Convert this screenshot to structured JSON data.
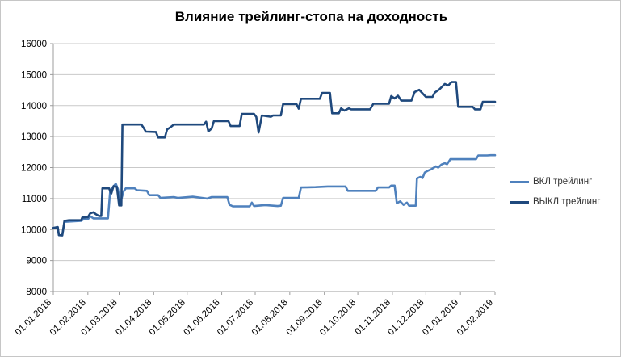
{
  "chart_data": {
    "type": "line",
    "title": "Влияние трейлинг-стопа на доходность",
    "xlabel": "",
    "ylabel": "",
    "ylim": [
      8000,
      16000
    ],
    "y_ticks": [
      8000,
      9000,
      10000,
      11000,
      12000,
      13000,
      14000,
      15000,
      16000
    ],
    "x_tick_labels": [
      "01.01.2018",
      "01.02.2018",
      "01.03.2018",
      "01.04.2018",
      "01.05.2018",
      "01.06.2018",
      "01.07.2018",
      "01.08.2018",
      "01.09.2018",
      "01.10.2018",
      "01.11.2018",
      "01.12.2018",
      "01.01.2019",
      "01.02.2019"
    ],
    "x_tick_days": [
      0,
      31,
      59,
      90,
      120,
      151,
      181,
      212,
      243,
      273,
      304,
      334,
      365,
      396
    ],
    "xlim_days": [
      0,
      396
    ],
    "grid": true,
    "legend_position": "right",
    "axis_color": "#9c9c9c",
    "grid_color": "#c9c9c9",
    "tick_label_color": "#000000",
    "series": [
      {
        "name": "ВКЛ трейлинг",
        "color": "#4F81BD",
        "points": [
          [
            0,
            10050
          ],
          [
            4,
            10080
          ],
          [
            5,
            9820
          ],
          [
            8,
            9810
          ],
          [
            10,
            10250
          ],
          [
            25,
            10280
          ],
          [
            27,
            10330
          ],
          [
            31,
            10330
          ],
          [
            33,
            10430
          ],
          [
            36,
            10360
          ],
          [
            49,
            10360
          ],
          [
            51,
            11230
          ],
          [
            53,
            11350
          ],
          [
            56,
            11480
          ],
          [
            58,
            11300
          ],
          [
            60,
            10850
          ],
          [
            63,
            11230
          ],
          [
            65,
            11330
          ],
          [
            73,
            11330
          ],
          [
            75,
            11270
          ],
          [
            84,
            11250
          ],
          [
            86,
            11110
          ],
          [
            94,
            11110
          ],
          [
            96,
            11020
          ],
          [
            108,
            11050
          ],
          [
            112,
            11020
          ],
          [
            125,
            11060
          ],
          [
            138,
            11000
          ],
          [
            142,
            11050
          ],
          [
            156,
            11050
          ],
          [
            158,
            10800
          ],
          [
            161,
            10750
          ],
          [
            176,
            10750
          ],
          [
            178,
            10870
          ],
          [
            180,
            10760
          ],
          [
            190,
            10790
          ],
          [
            201,
            10760
          ],
          [
            204,
            10770
          ],
          [
            206,
            11020
          ],
          [
            220,
            11020
          ],
          [
            222,
            11360
          ],
          [
            235,
            11370
          ],
          [
            246,
            11390
          ],
          [
            262,
            11390
          ],
          [
            264,
            11250
          ],
          [
            289,
            11250
          ],
          [
            291,
            11360
          ],
          [
            301,
            11360
          ],
          [
            303,
            11420
          ],
          [
            306,
            11420
          ],
          [
            308,
            10850
          ],
          [
            311,
            10910
          ],
          [
            314,
            10800
          ],
          [
            317,
            10870
          ],
          [
            319,
            10770
          ],
          [
            325,
            10770
          ],
          [
            326,
            11650
          ],
          [
            329,
            11700
          ],
          [
            331,
            11660
          ],
          [
            333,
            11840
          ],
          [
            336,
            11900
          ],
          [
            339,
            11950
          ],
          [
            343,
            12040
          ],
          [
            345,
            12000
          ],
          [
            348,
            12100
          ],
          [
            351,
            12140
          ],
          [
            353,
            12110
          ],
          [
            356,
            12270
          ],
          [
            379,
            12270
          ],
          [
            381,
            12390
          ],
          [
            389,
            12390
          ],
          [
            392,
            12400
          ],
          [
            396,
            12400
          ]
        ]
      },
      {
        "name": "ВЫКЛ трейлинг",
        "color": "#1F497D",
        "points": [
          [
            0,
            10050
          ],
          [
            4,
            10080
          ],
          [
            5,
            9820
          ],
          [
            8,
            9810
          ],
          [
            10,
            10280
          ],
          [
            14,
            10300
          ],
          [
            25,
            10300
          ],
          [
            26,
            10390
          ],
          [
            31,
            10400
          ],
          [
            33,
            10520
          ],
          [
            36,
            10560
          ],
          [
            38,
            10500
          ],
          [
            41,
            10440
          ],
          [
            43,
            10440
          ],
          [
            44,
            11330
          ],
          [
            50,
            11330
          ],
          [
            52,
            11160
          ],
          [
            54,
            11400
          ],
          [
            57,
            11380
          ],
          [
            59,
            10780
          ],
          [
            61,
            10780
          ],
          [
            62,
            13390
          ],
          [
            79,
            13390
          ],
          [
            81,
            13280
          ],
          [
            83,
            13160
          ],
          [
            92,
            13150
          ],
          [
            94,
            12970
          ],
          [
            100,
            12970
          ],
          [
            102,
            13230
          ],
          [
            105,
            13300
          ],
          [
            108,
            13390
          ],
          [
            135,
            13390
          ],
          [
            137,
            13480
          ],
          [
            139,
            13170
          ],
          [
            142,
            13260
          ],
          [
            144,
            13500
          ],
          [
            157,
            13500
          ],
          [
            159,
            13340
          ],
          [
            167,
            13340
          ],
          [
            169,
            13730
          ],
          [
            180,
            13730
          ],
          [
            182,
            13630
          ],
          [
            184,
            13130
          ],
          [
            187,
            13680
          ],
          [
            195,
            13640
          ],
          [
            197,
            13680
          ],
          [
            204,
            13680
          ],
          [
            206,
            14050
          ],
          [
            218,
            14050
          ],
          [
            220,
            13900
          ],
          [
            222,
            14220
          ],
          [
            239,
            14220
          ],
          [
            241,
            14410
          ],
          [
            248,
            14410
          ],
          [
            250,
            13750
          ],
          [
            256,
            13750
          ],
          [
            258,
            13910
          ],
          [
            261,
            13840
          ],
          [
            265,
            13910
          ],
          [
            267,
            13880
          ],
          [
            284,
            13880
          ],
          [
            287,
            14060
          ],
          [
            301,
            14060
          ],
          [
            303,
            14310
          ],
          [
            306,
            14230
          ],
          [
            309,
            14320
          ],
          [
            312,
            14160
          ],
          [
            321,
            14160
          ],
          [
            324,
            14440
          ],
          [
            328,
            14510
          ],
          [
            334,
            14280
          ],
          [
            340,
            14280
          ],
          [
            342,
            14420
          ],
          [
            346,
            14520
          ],
          [
            351,
            14700
          ],
          [
            354,
            14650
          ],
          [
            357,
            14760
          ],
          [
            361,
            14760
          ],
          [
            363,
            13960
          ],
          [
            376,
            13960
          ],
          [
            378,
            13880
          ],
          [
            383,
            13880
          ],
          [
            385,
            14120
          ],
          [
            396,
            14120
          ]
        ]
      }
    ]
  }
}
